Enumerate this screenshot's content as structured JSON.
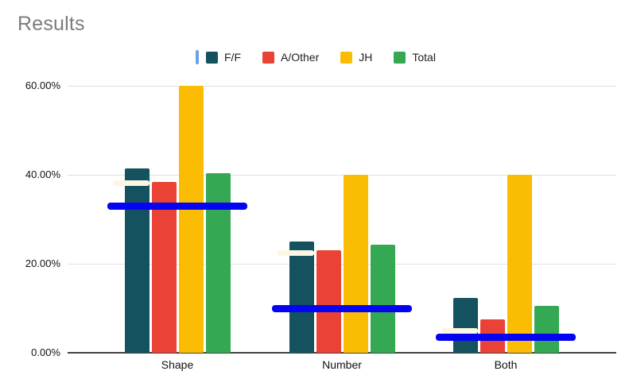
{
  "title": "Results",
  "colors": {
    "title_text": "#7c7c7c",
    "axis_text": "#111111",
    "gridline": "#e0e0e0",
    "baseline": "#424242",
    "background": "#ffffff",
    "blue_line": "#0404f2",
    "cream_mark": "#fcf7e2",
    "legend_cursor": "#6d9eeb",
    "legend_text": "#202124"
  },
  "chart_data": {
    "type": "bar",
    "title": "Results",
    "categories": [
      "Shape",
      "Number",
      "Both"
    ],
    "series": [
      {
        "name": "F/F",
        "color": "#15525f",
        "values": [
          41.5,
          25,
          12.3
        ]
      },
      {
        "name": "A/Other",
        "color": "#ea4335",
        "values": [
          38.5,
          23,
          7.5
        ]
      },
      {
        "name": "JH",
        "color": "#fbbc04",
        "values": [
          60,
          40,
          40
        ]
      },
      {
        "name": "Total",
        "color": "#34a853",
        "values": [
          40.4,
          24.3,
          10.5
        ]
      }
    ],
    "ylabel": "",
    "xlabel": "",
    "ylim": [
      0,
      60
    ],
    "yticks": [
      {
        "label": "0.00%",
        "value": 0
      },
      {
        "label": "20.00%",
        "value": 20
      },
      {
        "label": "40.00%",
        "value": 40
      },
      {
        "label": "60.00%",
        "value": 60
      }
    ],
    "grid": true,
    "legend_position": "top",
    "annotations": {
      "blue_lines": [
        {
          "category": "Shape",
          "value": 33
        },
        {
          "category": "Number",
          "value": 10
        },
        {
          "category": "Both",
          "value": 3.4
        }
      ],
      "cream_marks": [
        {
          "category": "Shape",
          "value": 38.1
        },
        {
          "category": "Number",
          "value": 22.4
        },
        {
          "category": "Both",
          "value": 4.9
        }
      ]
    }
  }
}
